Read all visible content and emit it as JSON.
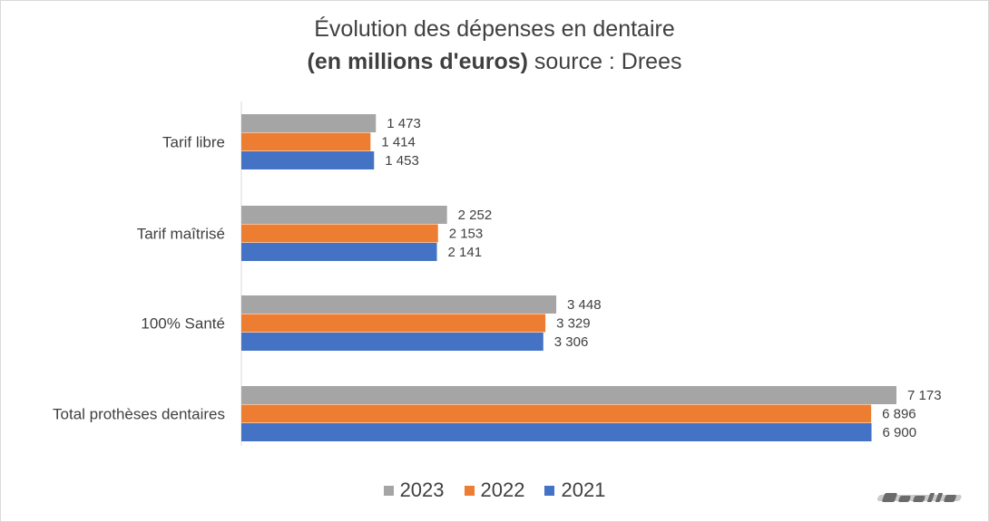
{
  "title": {
    "line1": "Évolution des dépenses en dentaire",
    "line2_bold": "(en millions d'euros)",
    "line2_rest": " source : Drees"
  },
  "chart_data": {
    "type": "bar",
    "orientation": "horizontal",
    "title": "Évolution des dépenses en dentaire (en millions d'euros) source : Drees",
    "categories": [
      "Tarif libre",
      "Tarif maîtrisé",
      "100% Santé",
      "Total prothèses dentaires"
    ],
    "series": [
      {
        "name": "2023",
        "color": "#a5a5a5",
        "values": [
          1473,
          2252,
          3448,
          7173
        ],
        "labels": [
          "1 473",
          "2 252",
          "3 448",
          "7 173"
        ]
      },
      {
        "name": "2022",
        "color": "#ed7d31",
        "values": [
          1414,
          2153,
          3329,
          6896
        ],
        "labels": [
          "1 414",
          "2 153",
          "3 329",
          "6 896"
        ]
      },
      {
        "name": "2021",
        "color": "#4472c4",
        "values": [
          1453,
          2141,
          3306,
          6900
        ],
        "labels": [
          "1 453",
          "2 141",
          "3 306",
          "6 900"
        ]
      }
    ],
    "xlim": [
      0,
      7173
    ],
    "grid": false,
    "legend_position": "bottom"
  },
  "legend": [
    {
      "label": "2023",
      "color": "#a5a5a5"
    },
    {
      "label": "2022",
      "color": "#ed7d31"
    },
    {
      "label": "2021",
      "color": "#4472c4"
    }
  ],
  "watermark": {
    "icon": "brand-logo-watermark"
  }
}
